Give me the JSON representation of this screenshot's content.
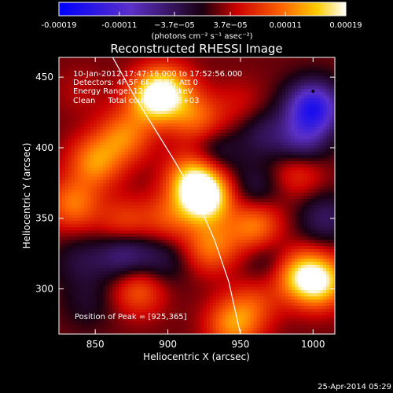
{
  "chart_data": {
    "type": "heatmap",
    "title": "Reconstructed RHESSI Image",
    "xlabel": "Heliocentric X (arcsec)",
    "ylabel": "Heliocentric Y (arcsec)",
    "xlim": [
      825,
      1015
    ],
    "ylim": [
      268,
      464
    ],
    "x_ticks": [
      850,
      900,
      950,
      1000
    ],
    "y_ticks": [
      300,
      350,
      400,
      450
    ],
    "colorbar": {
      "ticks": [
        "-0.00019",
        "-0.00011",
        "−3.7e−05",
        "3.7e−05",
        "0.00011",
        "0.00019"
      ],
      "tick_values": [
        -0.00019,
        -0.00011,
        -3.7e-05,
        3.7e-05,
        0.00011,
        0.00019
      ],
      "range": [
        -0.00019,
        0.00019
      ],
      "units": "(photons cm⁻² s⁻¹ asec⁻²)"
    },
    "annotations": {
      "time": "10-Jan-2012 17:47:16.000 to 17:52:56.000",
      "detectors": "Detectors: 4F 5F 6F 7F 8F, Att 0",
      "energy": "Energy Range: 12.0 - 25.0 keV",
      "clean": "Clean     Total counts: 9.96E+03",
      "peak": "Position of Peak = [925,365]"
    },
    "peak": [
      925,
      365
    ],
    "limb_points": [
      [
        862,
        464
      ],
      [
        875,
        440
      ],
      [
        890,
        415
      ],
      [
        905,
        390
      ],
      [
        920,
        363
      ],
      [
        932,
        335
      ],
      [
        942,
        305
      ],
      [
        950,
        268
      ]
    ],
    "blobs": [
      {
        "x": 925,
        "y": 365,
        "v": 0.00019
      },
      {
        "x": 918,
        "y": 380,
        "v": 0.00012
      },
      {
        "x": 890,
        "y": 435,
        "v": 0.00013
      },
      {
        "x": 900,
        "y": 440,
        "v": 0.0001
      },
      {
        "x": 920,
        "y": 420,
        "v": 8e-05
      },
      {
        "x": 870,
        "y": 408,
        "v": 9e-05
      },
      {
        "x": 850,
        "y": 390,
        "v": 0.0001
      },
      {
        "x": 835,
        "y": 360,
        "v": 9e-05
      },
      {
        "x": 870,
        "y": 345,
        "v": 7e-05
      },
      {
        "x": 900,
        "y": 350,
        "v": 6e-05
      },
      {
        "x": 880,
        "y": 300,
        "v": 8e-05
      },
      {
        "x": 930,
        "y": 330,
        "v": 9e-05
      },
      {
        "x": 960,
        "y": 345,
        "v": 0.0001
      },
      {
        "x": 990,
        "y": 310,
        "v": 0.00011
      },
      {
        "x": 1005,
        "y": 305,
        "v": 0.00014
      },
      {
        "x": 990,
        "y": 385,
        "v": 7e-05
      },
      {
        "x": 950,
        "y": 430,
        "v": 3e-05
      },
      {
        "x": 960,
        "y": 290,
        "v": 5e-05
      },
      {
        "x": 945,
        "y": 275,
        "v": 0.0001
      },
      {
        "x": 840,
        "y": 440,
        "v": 2e-05
      },
      {
        "x": 1000,
        "y": 428,
        "v": -0.00017
      },
      {
        "x": 992,
        "y": 402,
        "v": -9e-05
      },
      {
        "x": 870,
        "y": 325,
        "v": -9e-05
      },
      {
        "x": 930,
        "y": 395,
        "v": -6e-05
      },
      {
        "x": 960,
        "y": 370,
        "v": -5e-05
      },
      {
        "x": 965,
        "y": 410,
        "v": -5e-05
      },
      {
        "x": 840,
        "y": 320,
        "v": -4e-05
      },
      {
        "x": 970,
        "y": 320,
        "v": -4e-05
      },
      {
        "x": 895,
        "y": 320,
        "v": -5e-05
      },
      {
        "x": 845,
        "y": 290,
        "v": -3e-05
      },
      {
        "x": 1008,
        "y": 350,
        "v": -6e-05
      }
    ]
  },
  "footer": {
    "date": "25-Apr-2014 05:29"
  }
}
